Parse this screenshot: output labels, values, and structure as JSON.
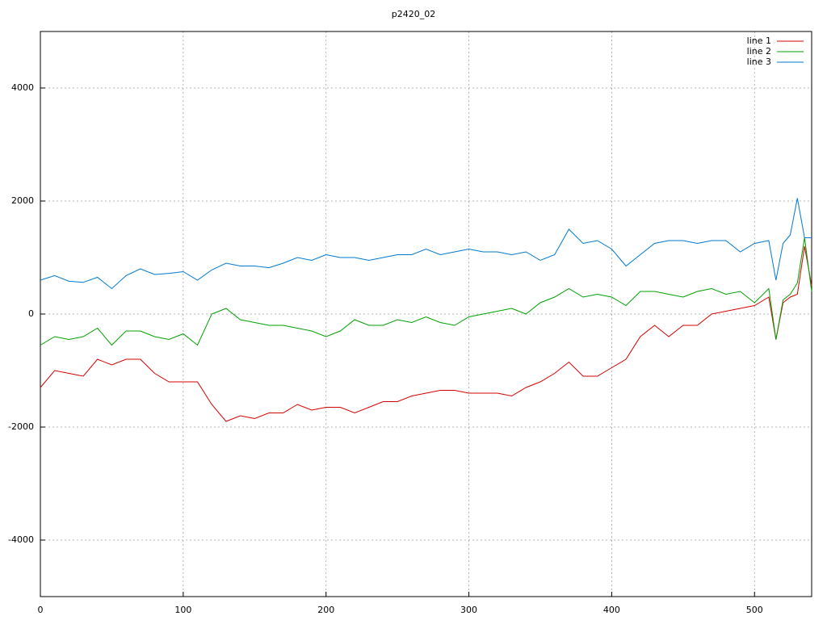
{
  "chart_data": {
    "type": "line",
    "title": "p2420_02",
    "x": [
      0,
      10,
      20,
      30,
      40,
      50,
      60,
      70,
      80,
      90,
      100,
      110,
      120,
      130,
      140,
      150,
      160,
      170,
      180,
      190,
      200,
      210,
      220,
      230,
      240,
      250,
      260,
      270,
      280,
      290,
      300,
      310,
      320,
      330,
      340,
      350,
      360,
      370,
      380,
      390,
      400,
      410,
      420,
      430,
      440,
      450,
      460,
      470,
      480,
      490,
      500,
      510,
      515,
      520,
      525,
      530,
      535,
      540
    ],
    "series": [
      {
        "name": "line 1",
        "color": "#d40000",
        "values": [
          -1300,
          -1000,
          -1050,
          -1100,
          -800,
          -900,
          -800,
          -800,
          -1050,
          -1200,
          -1200,
          -1200,
          -1600,
          -1900,
          -1800,
          -1850,
          -1750,
          -1750,
          -1600,
          -1700,
          -1650,
          -1650,
          -1750,
          -1650,
          -1550,
          -1550,
          -1450,
          -1400,
          -1350,
          -1350,
          -1400,
          -1400,
          -1400,
          -1450,
          -1300,
          -1200,
          -1050,
          -850,
          -1100,
          -1100,
          -950,
          -800,
          -400,
          -200,
          -400,
          -200,
          -200,
          0,
          50,
          100,
          150,
          300,
          -450,
          200,
          300,
          350,
          1200,
          500
        ]
      },
      {
        "name": "line 2",
        "color": "#00a000",
        "values": [
          -550,
          -400,
          -450,
          -400,
          -250,
          -550,
          -300,
          -300,
          -400,
          -450,
          -350,
          -550,
          0,
          100,
          -100,
          -150,
          -200,
          -200,
          -250,
          -300,
          -400,
          -300,
          -100,
          -200,
          -200,
          -100,
          -150,
          -50,
          -150,
          -200,
          -50,
          0,
          50,
          100,
          0,
          200,
          300,
          450,
          300,
          350,
          300,
          150,
          400,
          400,
          350,
          300,
          400,
          450,
          350,
          400,
          200,
          450,
          -450,
          250,
          350,
          550,
          1350,
          400
        ]
      },
      {
        "name": "line 3",
        "color": "#0078d0",
        "values": [
          600,
          680,
          580,
          560,
          650,
          450,
          680,
          800,
          700,
          720,
          750,
          600,
          780,
          900,
          850,
          850,
          820,
          900,
          1000,
          950,
          1050,
          1000,
          1000,
          950,
          1000,
          1050,
          1050,
          1150,
          1050,
          1100,
          1150,
          1100,
          1100,
          1050,
          1100,
          950,
          1050,
          1500,
          1250,
          1300,
          1150,
          850,
          1050,
          1250,
          1300,
          1300,
          1250,
          1300,
          1300,
          1100,
          1250,
          1300,
          600,
          1250,
          1400,
          2050,
          1350,
          1350
        ]
      }
    ],
    "xlim": [
      0,
      540
    ],
    "ylim": [
      -5000,
      5000
    ],
    "xticks": [
      0,
      100,
      200,
      300,
      400,
      500
    ],
    "yticks": [
      -4000,
      -2000,
      0,
      2000,
      4000
    ],
    "grid": true,
    "legend": "upper right"
  }
}
